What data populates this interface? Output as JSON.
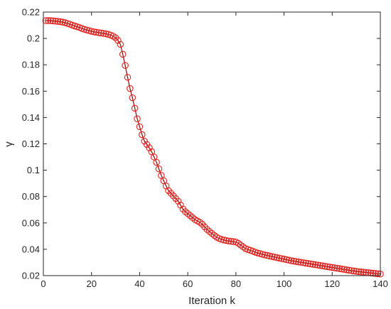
{
  "chart_data": {
    "type": "line",
    "title": "",
    "xlabel": "Iteration k",
    "ylabel": "γ",
    "xlim": [
      0,
      140
    ],
    "ylim": [
      0.02,
      0.22
    ],
    "xticks": [
      0,
      20,
      40,
      60,
      80,
      100,
      120,
      140
    ],
    "yticks": [
      0.02,
      0.04,
      0.06,
      0.08,
      0.1,
      0.12,
      0.14,
      0.16,
      0.18,
      0.2,
      0.22
    ],
    "ytick_labels": [
      "0.02",
      "0.04",
      "0.06",
      "0.08",
      "0.1",
      "0.12",
      "0.14",
      "0.16",
      "0.18",
      "0.2",
      "0.22"
    ],
    "grid": false,
    "marker": "circle",
    "line_color": "#8b1a1a",
    "marker_color": "#e0201b",
    "series": [
      {
        "x": [
          1,
          2,
          3,
          4,
          5,
          6,
          7,
          8,
          9,
          10,
          11,
          12,
          13,
          14,
          15,
          16,
          17,
          18,
          19,
          20,
          21,
          22,
          23,
          24,
          25,
          26,
          27,
          28,
          29,
          30,
          31,
          32,
          33,
          34,
          35,
          36,
          37,
          38,
          39,
          40,
          41,
          42,
          43,
          44,
          45,
          46,
          47,
          48,
          49,
          50,
          51,
          52,
          53,
          54,
          55,
          56,
          57,
          58,
          59,
          60,
          61,
          62,
          63,
          64,
          65,
          66,
          67,
          68,
          69,
          70,
          71,
          72,
          73,
          74,
          75,
          76,
          77,
          78,
          79,
          80,
          81,
          82,
          83,
          84,
          85,
          86,
          87,
          88,
          89,
          90,
          91,
          92,
          93,
          94,
          95,
          96,
          97,
          98,
          99,
          100,
          101,
          102,
          103,
          104,
          105,
          106,
          107,
          108,
          109,
          110,
          111,
          112,
          113,
          114,
          115,
          116,
          117,
          118,
          119,
          120,
          121,
          122,
          123,
          124,
          125,
          126,
          127,
          128,
          129,
          130,
          131,
          132,
          133,
          134,
          135,
          136,
          137,
          138,
          139,
          140
        ],
        "y": [
          0.2135,
          0.2135,
          0.2135,
          0.2133,
          0.2131,
          0.2129,
          0.2127,
          0.2124,
          0.212,
          0.2114,
          0.2108,
          0.2101,
          0.2095,
          0.2089,
          0.2083,
          0.2076,
          0.2069,
          0.2064,
          0.2059,
          0.2054,
          0.205,
          0.2047,
          0.2044,
          0.2041,
          0.2038,
          0.2035,
          0.2031,
          0.2025,
          0.2017,
          0.2005,
          0.1985,
          0.1955,
          0.188,
          0.1795,
          0.1705,
          0.162,
          0.155,
          0.147,
          0.139,
          0.133,
          0.127,
          0.122,
          0.1195,
          0.117,
          0.114,
          0.11,
          0.106,
          0.101,
          0.096,
          0.092,
          0.088,
          0.0845,
          0.0825,
          0.0805,
          0.0785,
          0.0765,
          0.0735,
          0.0705,
          0.0685,
          0.067,
          0.0655,
          0.064,
          0.0625,
          0.0615,
          0.0605,
          0.059,
          0.057,
          0.055,
          0.0535,
          0.052,
          0.0505,
          0.0492,
          0.0482,
          0.0475,
          0.047,
          0.0466,
          0.0463,
          0.046,
          0.0458,
          0.0455,
          0.0445,
          0.0432,
          0.0418,
          0.0405,
          0.0398,
          0.0392,
          0.0385,
          0.0378,
          0.0372,
          0.0367,
          0.0362,
          0.0357,
          0.0353,
          0.0349,
          0.0345,
          0.0341,
          0.0337,
          0.0333,
          0.0329,
          0.0325,
          0.0321,
          0.0317,
          0.0313,
          0.031,
          0.0307,
          0.0304,
          0.0301,
          0.0298,
          0.0295,
          0.0292,
          0.0289,
          0.0286,
          0.0283,
          0.028,
          0.0277,
          0.0274,
          0.0271,
          0.0268,
          0.0265,
          0.0262,
          0.0259,
          0.0256,
          0.0253,
          0.025,
          0.0247,
          0.0244,
          0.0241,
          0.0238,
          0.0235,
          0.0232,
          0.023,
          0.0228,
          0.0226,
          0.0224,
          0.0222,
          0.022,
          0.0218,
          0.0216,
          0.0214,
          0.0212
        ]
      }
    ]
  }
}
